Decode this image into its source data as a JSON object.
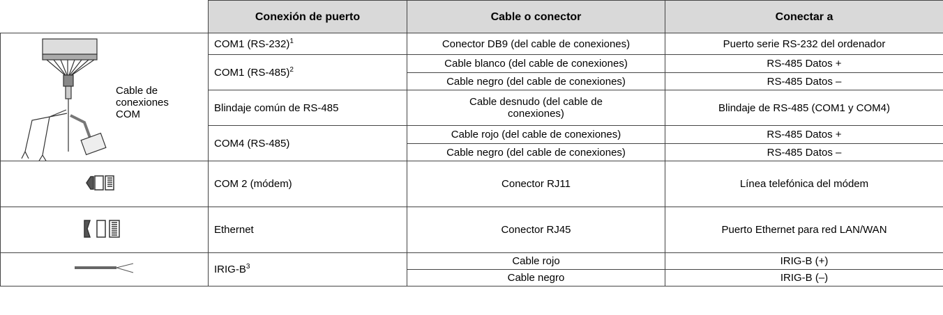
{
  "table": {
    "header": [
      "Conexión de puerto",
      "Cable o conector",
      "Conectar a"
    ],
    "com_cable_label": "Cable de conexiones COM",
    "rows": [
      {
        "port": {
          "text": "COM1 (RS-232)",
          "sup": "1"
        },
        "lines": [
          {
            "cable": "Conector DB9 (del cable de conexiones)",
            "target": "Puerto serie RS-232 del ordenador"
          }
        ]
      },
      {
        "port": {
          "text": "COM1 (RS-485)",
          "sup": "2"
        },
        "lines": [
          {
            "cable": "Cable blanco (del cable de conexiones)",
            "target": "RS-485 Datos +"
          },
          {
            "cable": "Cable negro (del cable de conexiones)",
            "target": "RS-485 Datos –"
          }
        ]
      },
      {
        "port": {
          "text": "Blindaje común de RS-485"
        },
        "lines": [
          {
            "cable": "Cable desnudo (del cable de conexiones)",
            "target": "Blindaje de RS-485 (COM1 y COM4)"
          }
        ]
      },
      {
        "port": {
          "text": "COM4 (RS-485)"
        },
        "lines": [
          {
            "cable": "Cable rojo (del cable de conexiones)",
            "target": "RS-485 Datos +"
          },
          {
            "cable": "Cable negro (del cable de conexiones)",
            "target": "RS-485 Datos –"
          }
        ]
      },
      {
        "port": {
          "text": "COM 2 (módem)"
        },
        "lines": [
          {
            "cable": "Conector RJ11",
            "target": "Línea telefónica del módem"
          }
        ]
      },
      {
        "port": {
          "text": "Ethernet"
        },
        "lines": [
          {
            "cable": "Conector RJ45",
            "target": "Puerto Ethernet para red LAN/WAN"
          }
        ]
      },
      {
        "port": {
          "text": "IRIG-B",
          "sup": "3"
        },
        "lines": [
          {
            "cable": "Cable rojo",
            "target": "IRIG-B (+)"
          },
          {
            "cable": "Cable negro",
            "target": "IRIG-B (–)"
          }
        ]
      }
    ]
  }
}
